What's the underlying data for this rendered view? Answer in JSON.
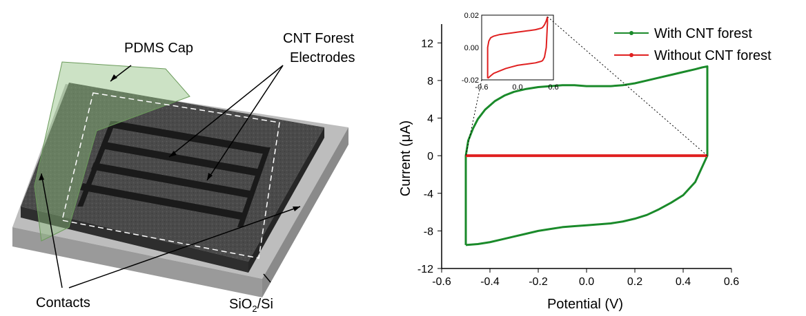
{
  "device": {
    "label_cap": "PDMS Cap",
    "label_electrodes_1": "CNT Forest",
    "label_electrodes_2": "Electrodes",
    "label_contacts": "Contacts",
    "label_substrate_pre": "SiO",
    "label_substrate_sub": "2",
    "label_substrate_post": "/Si"
  },
  "chart_data": {
    "type": "line",
    "xlabel": "Potential (V)",
    "ylabel": "Current (μA)",
    "xlim": [
      -0.6,
      0.6
    ],
    "ylim": [
      -12,
      14
    ],
    "xticks": [
      "-0.6",
      "-0.4",
      "-0.2",
      "0.0",
      "0.2",
      "0.4",
      "0.6"
    ],
    "yticks": [
      "-12",
      "-8",
      "-4",
      "0",
      "4",
      "8",
      "12"
    ],
    "legend_position": "top-right",
    "series": [
      {
        "name": "With CNT forest",
        "color": "#1a8a2a",
        "x": [
          -0.5,
          -0.5,
          -0.49,
          -0.47,
          -0.45,
          -0.42,
          -0.38,
          -0.34,
          -0.3,
          -0.25,
          -0.2,
          -0.15,
          -0.1,
          -0.05,
          0.0,
          0.05,
          0.1,
          0.15,
          0.2,
          0.25,
          0.3,
          0.35,
          0.4,
          0.45,
          0.48,
          0.5,
          0.5,
          0.5,
          0.45,
          0.4,
          0.35,
          0.3,
          0.25,
          0.2,
          0.15,
          0.1,
          0.05,
          0.0,
          -0.05,
          -0.1,
          -0.15,
          -0.2,
          -0.25,
          -0.3,
          -0.35,
          -0.4,
          -0.45,
          -0.5
        ],
        "y": [
          -9.5,
          0.0,
          1.6,
          2.9,
          3.9,
          4.9,
          5.8,
          6.4,
          6.8,
          7.1,
          7.3,
          7.4,
          7.5,
          7.5,
          7.4,
          7.4,
          7.4,
          7.5,
          7.7,
          8.0,
          8.3,
          8.6,
          8.9,
          9.2,
          9.4,
          9.5,
          2.0,
          0.0,
          -2.8,
          -4.2,
          -5.0,
          -5.7,
          -6.3,
          -6.7,
          -7.0,
          -7.2,
          -7.3,
          -7.4,
          -7.5,
          -7.6,
          -7.8,
          -8.0,
          -8.3,
          -8.6,
          -8.9,
          -9.2,
          -9.4,
          -9.5
        ]
      },
      {
        "name": "Without CNT forest",
        "color": "#e02020",
        "x": [
          -0.5,
          0.5
        ],
        "y": [
          0.0,
          0.0
        ]
      }
    ],
    "inset": {
      "xlim": [
        -0.6,
        0.6
      ],
      "ylim": [
        -0.02,
        0.02
      ],
      "xticks": [
        "-0.6",
        "0.0",
        "0.6"
      ],
      "yticks": [
        "-0.02",
        "0.00",
        "0.02"
      ],
      "series": [
        {
          "name": "Without CNT forest",
          "color": "#e02020",
          "x": [
            -0.5,
            -0.5,
            -0.48,
            -0.45,
            -0.4,
            -0.3,
            -0.2,
            -0.1,
            0.0,
            0.1,
            0.2,
            0.3,
            0.35,
            0.4,
            0.42,
            0.45,
            0.48,
            0.5,
            0.5,
            0.48,
            0.45,
            0.42,
            0.4,
            0.35,
            0.3,
            0.2,
            0.1,
            0.0,
            -0.1,
            -0.2,
            -0.3,
            -0.4,
            -0.45,
            -0.48,
            -0.5
          ],
          "y": [
            -0.019,
            0.0,
            0.004,
            0.006,
            0.007,
            0.008,
            0.0085,
            0.009,
            0.0095,
            0.01,
            0.0105,
            0.011,
            0.0115,
            0.012,
            0.0125,
            0.014,
            0.0165,
            0.019,
            0.015,
            0.0,
            -0.006,
            -0.008,
            -0.0085,
            -0.009,
            -0.0095,
            -0.01,
            -0.0105,
            -0.011,
            -0.012,
            -0.013,
            -0.0145,
            -0.016,
            -0.0175,
            -0.0185,
            -0.019
          ]
        }
      ]
    }
  }
}
